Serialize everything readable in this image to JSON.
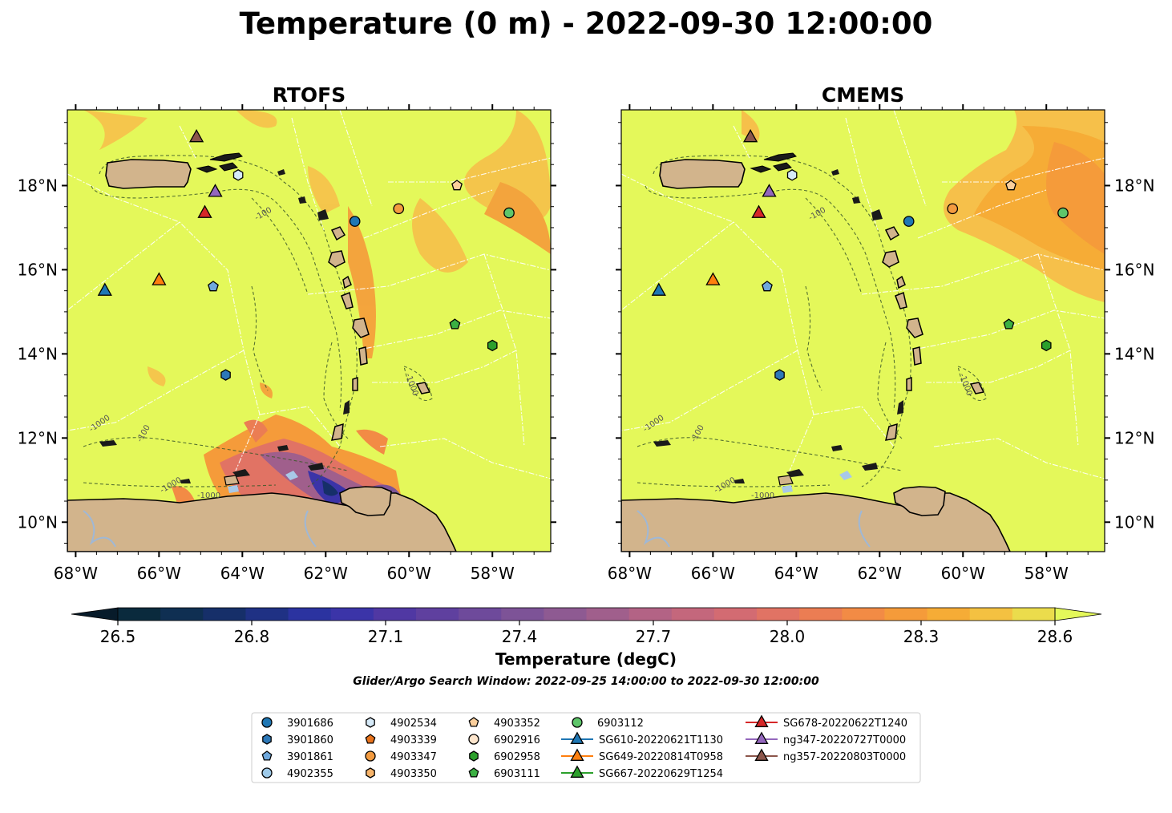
{
  "figure": {
    "title": "Temperature (0 m) - 2022-09-30 12:00:00",
    "footnote": "Glider/Argo Search Window: 2022-09-25 14:00:00 to 2022-09-30 12:00:00",
    "colors": {
      "background_sst": "#e4f85a",
      "land": "#d2b48c",
      "lakes": "#a8c8e8"
    }
  },
  "panels": [
    {
      "id": "rtofs",
      "title": "RTOFS"
    },
    {
      "id": "cmems",
      "title": "CMEMS"
    }
  ],
  "map_extent": {
    "lon": [
      -68.2,
      -56.6
    ],
    "lat": [
      9.3,
      19.8
    ]
  },
  "ticks": {
    "lon": [
      {
        "value": -68,
        "label": "68°W"
      },
      {
        "value": -66,
        "label": "66°W"
      },
      {
        "value": -64,
        "label": "64°W"
      },
      {
        "value": -62,
        "label": "62°W"
      },
      {
        "value": -60,
        "label": "60°W"
      },
      {
        "value": -58,
        "label": "58°W"
      }
    ],
    "lat": [
      {
        "value": 10,
        "label": "10°N"
      },
      {
        "value": 12,
        "label": "12°N"
      },
      {
        "value": 14,
        "label": "14°N"
      },
      {
        "value": 16,
        "label": "16°N"
      },
      {
        "value": 18,
        "label": "18°N"
      }
    ]
  },
  "contours": {
    "labels": [
      "-100",
      "-1000"
    ]
  },
  "colorbar": {
    "label": "Temperature (degC)",
    "min": 26.5,
    "max": 28.6,
    "step": 0.1,
    "ticks": [
      "26.5",
      "26.8",
      "27.1",
      "27.4",
      "27.7",
      "28.0",
      "28.3",
      "28.6"
    ],
    "extend": "both",
    "colors": [
      "#0a2a3d",
      "#0f2f52",
      "#162f69",
      "#1f3184",
      "#2b33a0",
      "#3b34a8",
      "#5038a3",
      "#5f409f",
      "#6e4a9b",
      "#7d5397",
      "#8e5a92",
      "#a05f8c",
      "#b36385",
      "#c4677c",
      "#d36b72",
      "#e17364",
      "#eb7d53",
      "#f28b45",
      "#f59b3a",
      "#f6ac36",
      "#f4c141",
      "#ebdc4c"
    ],
    "extend_low": "#071b2a",
    "extend_high": "#e4f85a"
  },
  "legend": {
    "items": [
      {
        "label": "3901686",
        "marker": "circle",
        "color": "#1f77b4"
      },
      {
        "label": "3901860",
        "marker": "hexagon",
        "color": "#2d78b8"
      },
      {
        "label": "3901861",
        "marker": "pentagon",
        "color": "#6fa8dc"
      },
      {
        "label": "4902355",
        "marker": "circle",
        "color": "#9ecae9"
      },
      {
        "label": "4902534",
        "marker": "hexagon",
        "color": "#d6eaf8"
      },
      {
        "label": "4903339",
        "marker": "pentagon",
        "color": "#e8731c"
      },
      {
        "label": "4903347",
        "marker": "circle",
        "color": "#f39b40"
      },
      {
        "label": "4903350",
        "marker": "hexagon",
        "color": "#f7b46a"
      },
      {
        "label": "4903352",
        "marker": "pentagon",
        "color": "#fbcf9c"
      },
      {
        "label": "6902916",
        "marker": "circle",
        "color": "#fde5cc"
      },
      {
        "label": "6902958",
        "marker": "hexagon",
        "color": "#2ca02c"
      },
      {
        "label": "6903111",
        "marker": "pentagon",
        "color": "#3cb043"
      },
      {
        "label": "6903112",
        "marker": "circle",
        "color": "#5ec66a"
      },
      {
        "label": "SG610-20220621T1130",
        "marker": "triangle",
        "color": "#1f77b4",
        "line": true
      },
      {
        "label": "SG649-20220814T0958",
        "marker": "triangle",
        "color": "#ff7f0e",
        "line": true
      },
      {
        "label": "SG667-20220629T1254",
        "marker": "triangle",
        "color": "#2ca02c",
        "line": true
      },
      {
        "label": "SG678-20220622T1240",
        "marker": "triangle",
        "color": "#d62728",
        "line": true
      },
      {
        "label": "ng347-20220727T0000",
        "marker": "triangle",
        "color": "#9467bd",
        "line": true
      },
      {
        "label": "ng357-20220803T0000",
        "marker": "triangle",
        "color": "#8c564b",
        "line": true
      }
    ]
  },
  "stations": [
    {
      "id": "3901686",
      "lon": -61.3,
      "lat": 17.15,
      "marker": "circle",
      "color": "#1f77b4"
    },
    {
      "id": "3901860",
      "lon": -64.4,
      "lat": 13.5,
      "marker": "hexagon",
      "color": "#2d78b8"
    },
    {
      "id": "3901861",
      "lon": -64.7,
      "lat": 15.6,
      "marker": "pentagon",
      "color": "#6fa8dc"
    },
    {
      "id": "4902534",
      "lon": -64.1,
      "lat": 18.25,
      "marker": "hexagon",
      "color": "#d6eaf8"
    },
    {
      "id": "4903347",
      "lon": -60.25,
      "lat": 17.45,
      "marker": "circle",
      "color": "#f39b40"
    },
    {
      "id": "4903352",
      "lon": -58.85,
      "lat": 18.0,
      "marker": "pentagon",
      "color": "#fbcf9c"
    },
    {
      "id": "6903112",
      "lon": -57.6,
      "lat": 17.35,
      "marker": "circle",
      "color": "#5ec66a"
    },
    {
      "id": "6903111",
      "lon": -58.9,
      "lat": 14.7,
      "marker": "pentagon",
      "color": "#3cb043"
    },
    {
      "id": "6902958",
      "lon": -58.0,
      "lat": 14.2,
      "marker": "hexagon",
      "color": "#2ca02c"
    },
    {
      "id": "SG610-20220621T1130",
      "lon": -67.3,
      "lat": 15.5,
      "marker": "triangle",
      "color": "#1f77b4"
    },
    {
      "id": "SG649-20220814T0958",
      "lon": -66.0,
      "lat": 15.75,
      "marker": "triangle",
      "color": "#ff7f0e"
    },
    {
      "id": "SG678-20220622T1240",
      "lon": -64.9,
      "lat": 17.35,
      "marker": "triangle",
      "color": "#d62728"
    },
    {
      "id": "ng347-20220727T0000",
      "lon": -64.65,
      "lat": 17.85,
      "marker": "triangle",
      "color": "#9467bd"
    },
    {
      "id": "ng357-20220803T0000",
      "lon": -65.1,
      "lat": 19.15,
      "marker": "triangle",
      "color": "#8c564b"
    }
  ]
}
